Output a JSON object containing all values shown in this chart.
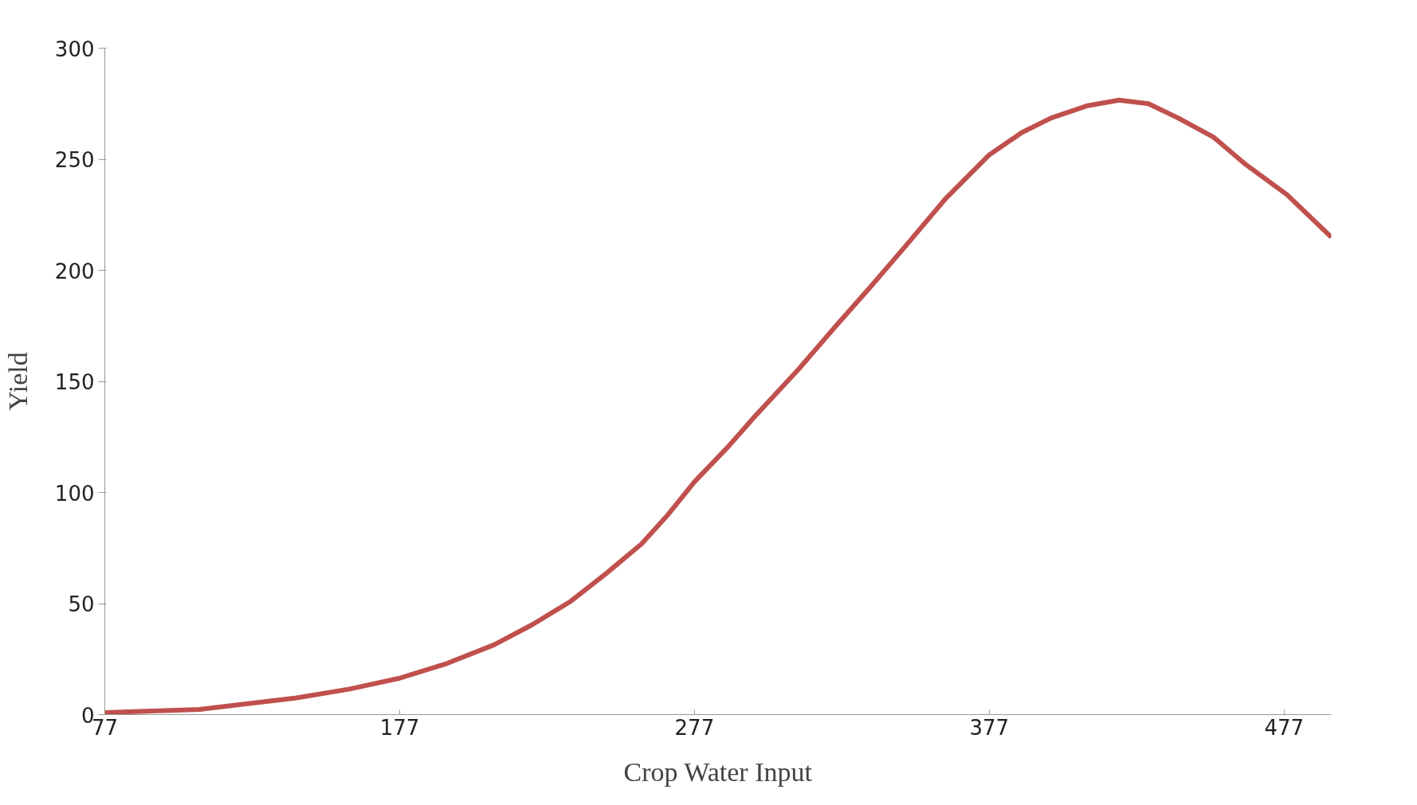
{
  "chart_data": {
    "type": "line",
    "xlabel": "Crop Water Input",
    "ylabel": "Yield",
    "x": [
      77,
      109,
      142,
      160,
      177,
      193,
      209,
      222,
      235,
      247,
      259,
      268,
      277,
      288,
      298,
      312,
      325,
      337,
      348,
      362,
      377,
      388,
      398,
      410,
      421,
      431,
      441,
      453,
      464,
      478,
      493
    ],
    "series": [
      {
        "color": "#c0504d",
        "values": [
          0.9,
          2.3,
          7.5,
          11.5,
          16.4,
          23,
          31.4,
          40.5,
          51,
          63.5,
          76.8,
          90,
          104.8,
          120,
          135,
          155,
          175,
          193,
          210,
          232,
          252,
          262,
          268.6,
          274,
          276.6,
          275,
          268.6,
          260,
          247.6,
          234,
          214.9
        ]
      }
    ],
    "xlim": [
      77,
      493
    ],
    "xticks": [
      77,
      177,
      277,
      377,
      477
    ],
    "ylim": [
      0,
      300
    ],
    "yticks": [
      0,
      50,
      100,
      150,
      200,
      250,
      300
    ],
    "grid": false,
    "marker": "none",
    "line_style": "solid"
  }
}
